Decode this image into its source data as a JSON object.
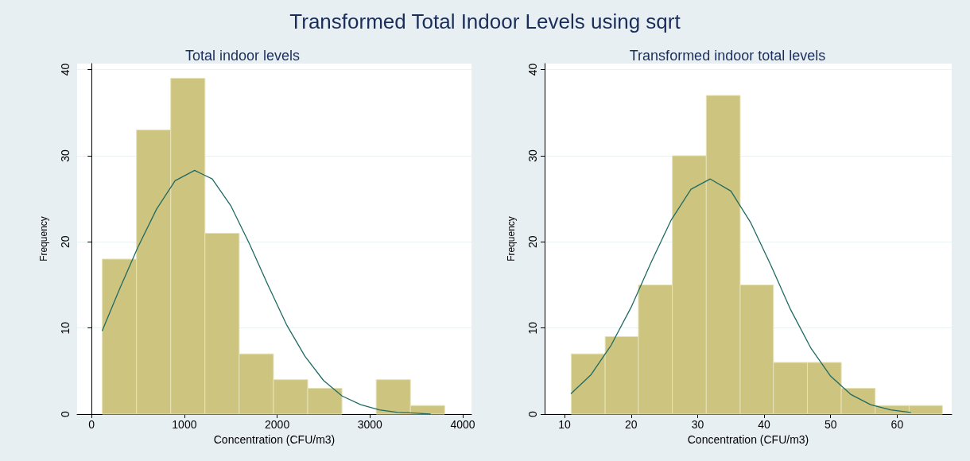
{
  "chart_data": [
    {
      "type": "histogram",
      "title": "Total indoor levels",
      "annotations": [
        "Transformed Total Indoor Levels using sqrt"
      ],
      "xlabel": "Concentration (CFU/m3)",
      "ylabel": "Frequency",
      "color": "#ccc47f",
      "bins": [
        115,
        484,
        853,
        1222,
        1591,
        1960,
        2329,
        2698,
        3067,
        3436,
        3805
      ],
      "values": [
        18,
        33,
        39,
        21,
        7,
        4,
        3,
        0,
        4,
        1
      ],
      "series": [
        {
          "type": "line",
          "color": "#1f6b63",
          "x": [
            115,
            300,
            500,
            700,
            900,
            1110,
            1300,
            1500,
            1700,
            1900,
            2100,
            2300,
            2500,
            2700,
            2900,
            3100,
            3300,
            3500,
            3650
          ],
          "values": [
            9.7,
            14.5,
            19.4,
            23.8,
            27.1,
            28.3,
            27.3,
            24.2,
            19.8,
            15.0,
            10.4,
            6.7,
            3.9,
            2.1,
            1.1,
            0.5,
            0.2,
            0.1,
            0.0
          ]
        }
      ],
      "xlim": [
        -156,
        4094
      ],
      "xticks": [
        0,
        1000,
        2000,
        3000,
        4000
      ],
      "ylim": [
        0,
        40.7
      ],
      "yticks": [
        0,
        10,
        20,
        30,
        40
      ],
      "grid": "y",
      "marker": "none"
    },
    {
      "type": "histogram",
      "title": "Transformed indoor total levels",
      "xlabel": "Concentration (CFU/m3)",
      "ylabel": "Frequency",
      "color": "#ccc47f",
      "bins": [
        11.0,
        16.1,
        21.1,
        26.2,
        31.3,
        36.4,
        41.4,
        46.5,
        51.6,
        56.7,
        61.8,
        66.8
      ],
      "values": [
        7,
        9,
        15,
        30,
        37,
        15,
        6,
        6,
        3,
        1,
        1
      ],
      "series": [
        {
          "type": "line",
          "color": "#1f6b63",
          "x": [
            11,
            14,
            17,
            20,
            23,
            26,
            29,
            31.9,
            35,
            38,
            41,
            44,
            47,
            50,
            53,
            56,
            59,
            62
          ],
          "values": [
            2.4,
            4.6,
            8.0,
            12.4,
            17.6,
            22.5,
            26.1,
            27.3,
            25.9,
            22.2,
            17.3,
            12.1,
            7.7,
            4.4,
            2.3,
            1.1,
            0.5,
            0.2
          ]
        }
      ],
      "xlim": [
        7.0,
        68.2
      ],
      "xticks": [
        10,
        20,
        30,
        40,
        50,
        60
      ],
      "ylim": [
        0,
        40.7
      ],
      "yticks": [
        0,
        10,
        20,
        30,
        40
      ],
      "grid": "y",
      "marker": "none"
    }
  ]
}
